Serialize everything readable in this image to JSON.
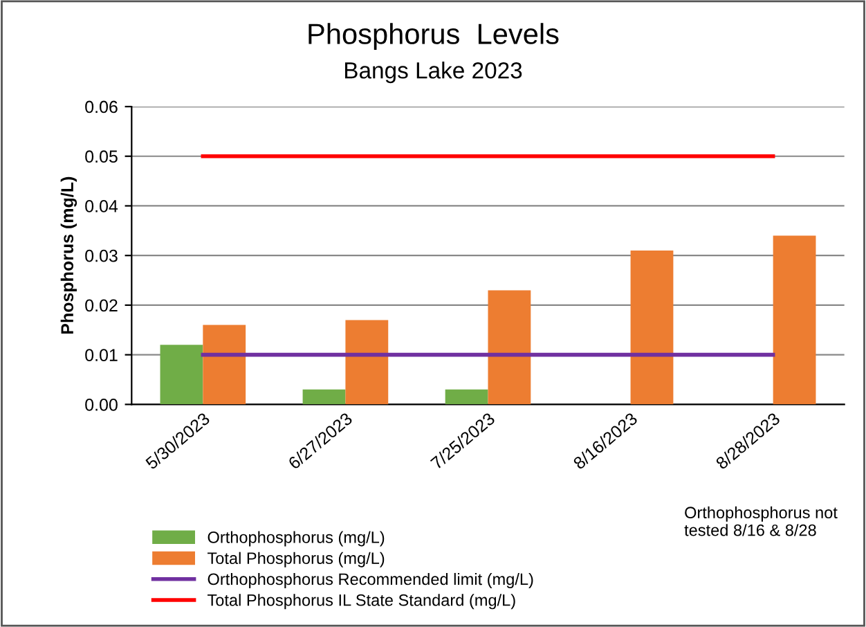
{
  "chart_data": {
    "type": "bar",
    "title": "Phosphorus  Levels",
    "subtitle": "Bangs Lake 2023",
    "ylabel": "Phosphorus (mg/L)",
    "categories": [
      "5/30/2023",
      "6/27/2023",
      "7/25/2023",
      "8/16/2023",
      "8/28/2023"
    ],
    "series": [
      {
        "name": "Orthophosphorus (mg/L)",
        "color": "#70ad47",
        "values": [
          0.012,
          0.003,
          0.003,
          null,
          null
        ]
      },
      {
        "name": "Total Phosphorus (mg/L)",
        "color": "#ed7d31",
        "values": [
          0.016,
          0.017,
          0.023,
          0.031,
          0.034
        ]
      },
      {
        "name": "Orthophosphorus Recommended limit (mg/L)",
        "type": "line",
        "color": "#7030a0",
        "values": [
          0.01,
          0.01,
          0.01,
          0.01,
          0.01
        ]
      },
      {
        "name": "Total Phosphorus IL State Standard (mg/L)",
        "type": "line",
        "color": "#ff0000",
        "values": [
          0.05,
          0.05,
          0.05,
          0.05,
          0.05
        ]
      }
    ],
    "ylim": [
      0,
      0.06
    ],
    "yticks": [
      {
        "value": 0,
        "label": "0.00"
      },
      {
        "value": 0.01,
        "label": "0.01"
      },
      {
        "value": 0.02,
        "label": "0.02"
      },
      {
        "value": 0.03,
        "label": "0.03"
      },
      {
        "value": 0.04,
        "label": "0.04"
      },
      {
        "value": 0.05,
        "label": "0.05"
      },
      {
        "value": 0.06,
        "label": "0.06"
      }
    ],
    "grid": "y",
    "legend": "bottom",
    "annotations": [
      "Orthophosphorus not tested 8/16 & 8/28"
    ]
  }
}
